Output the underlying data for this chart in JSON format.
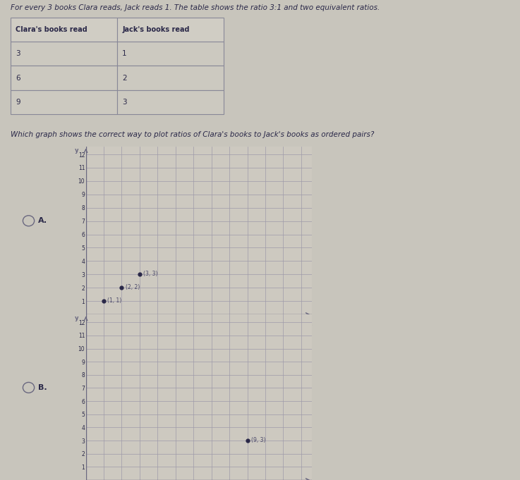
{
  "bg_color": "#c8c5bc",
  "title_text": "For every 3 books Clara reads, Jack reads 1. The table shows the ratio 3:1 and two equivalent ratios.",
  "table_headers": [
    "Clara's books read",
    "Jack's books read"
  ],
  "table_rows": [
    [
      "3",
      "1"
    ],
    [
      "6",
      "2"
    ],
    [
      "9",
      "3"
    ]
  ],
  "question_text": "Which graph shows the correct way to plot ratios of Clara's books to Jack's books as ordered pairs?",
  "graph_A_label": "A.",
  "graph_A_points": [
    [
      1,
      1
    ],
    [
      2,
      2
    ],
    [
      3,
      3
    ]
  ],
  "graph_A_annotations": [
    "(1, 1)",
    "(2, 2)",
    "(3, 3)"
  ],
  "graph_B_label": "B.",
  "graph_B_points": [
    [
      9,
      3
    ]
  ],
  "graph_B_annotations": [
    "(9, 3)"
  ],
  "axis_ticks": [
    1,
    2,
    3,
    4,
    5,
    6,
    7,
    8,
    9,
    10,
    11,
    12
  ],
  "grid_color": "#9e9baa",
  "axis_color": "#6a6880",
  "point_color": "#2a2848",
  "text_color": "#2a2848",
  "ann_color": "#4a4868",
  "table_header_bg": "#d0cdc4",
  "table_cell_bg": "#ccc9c0",
  "table_border": "#888898"
}
